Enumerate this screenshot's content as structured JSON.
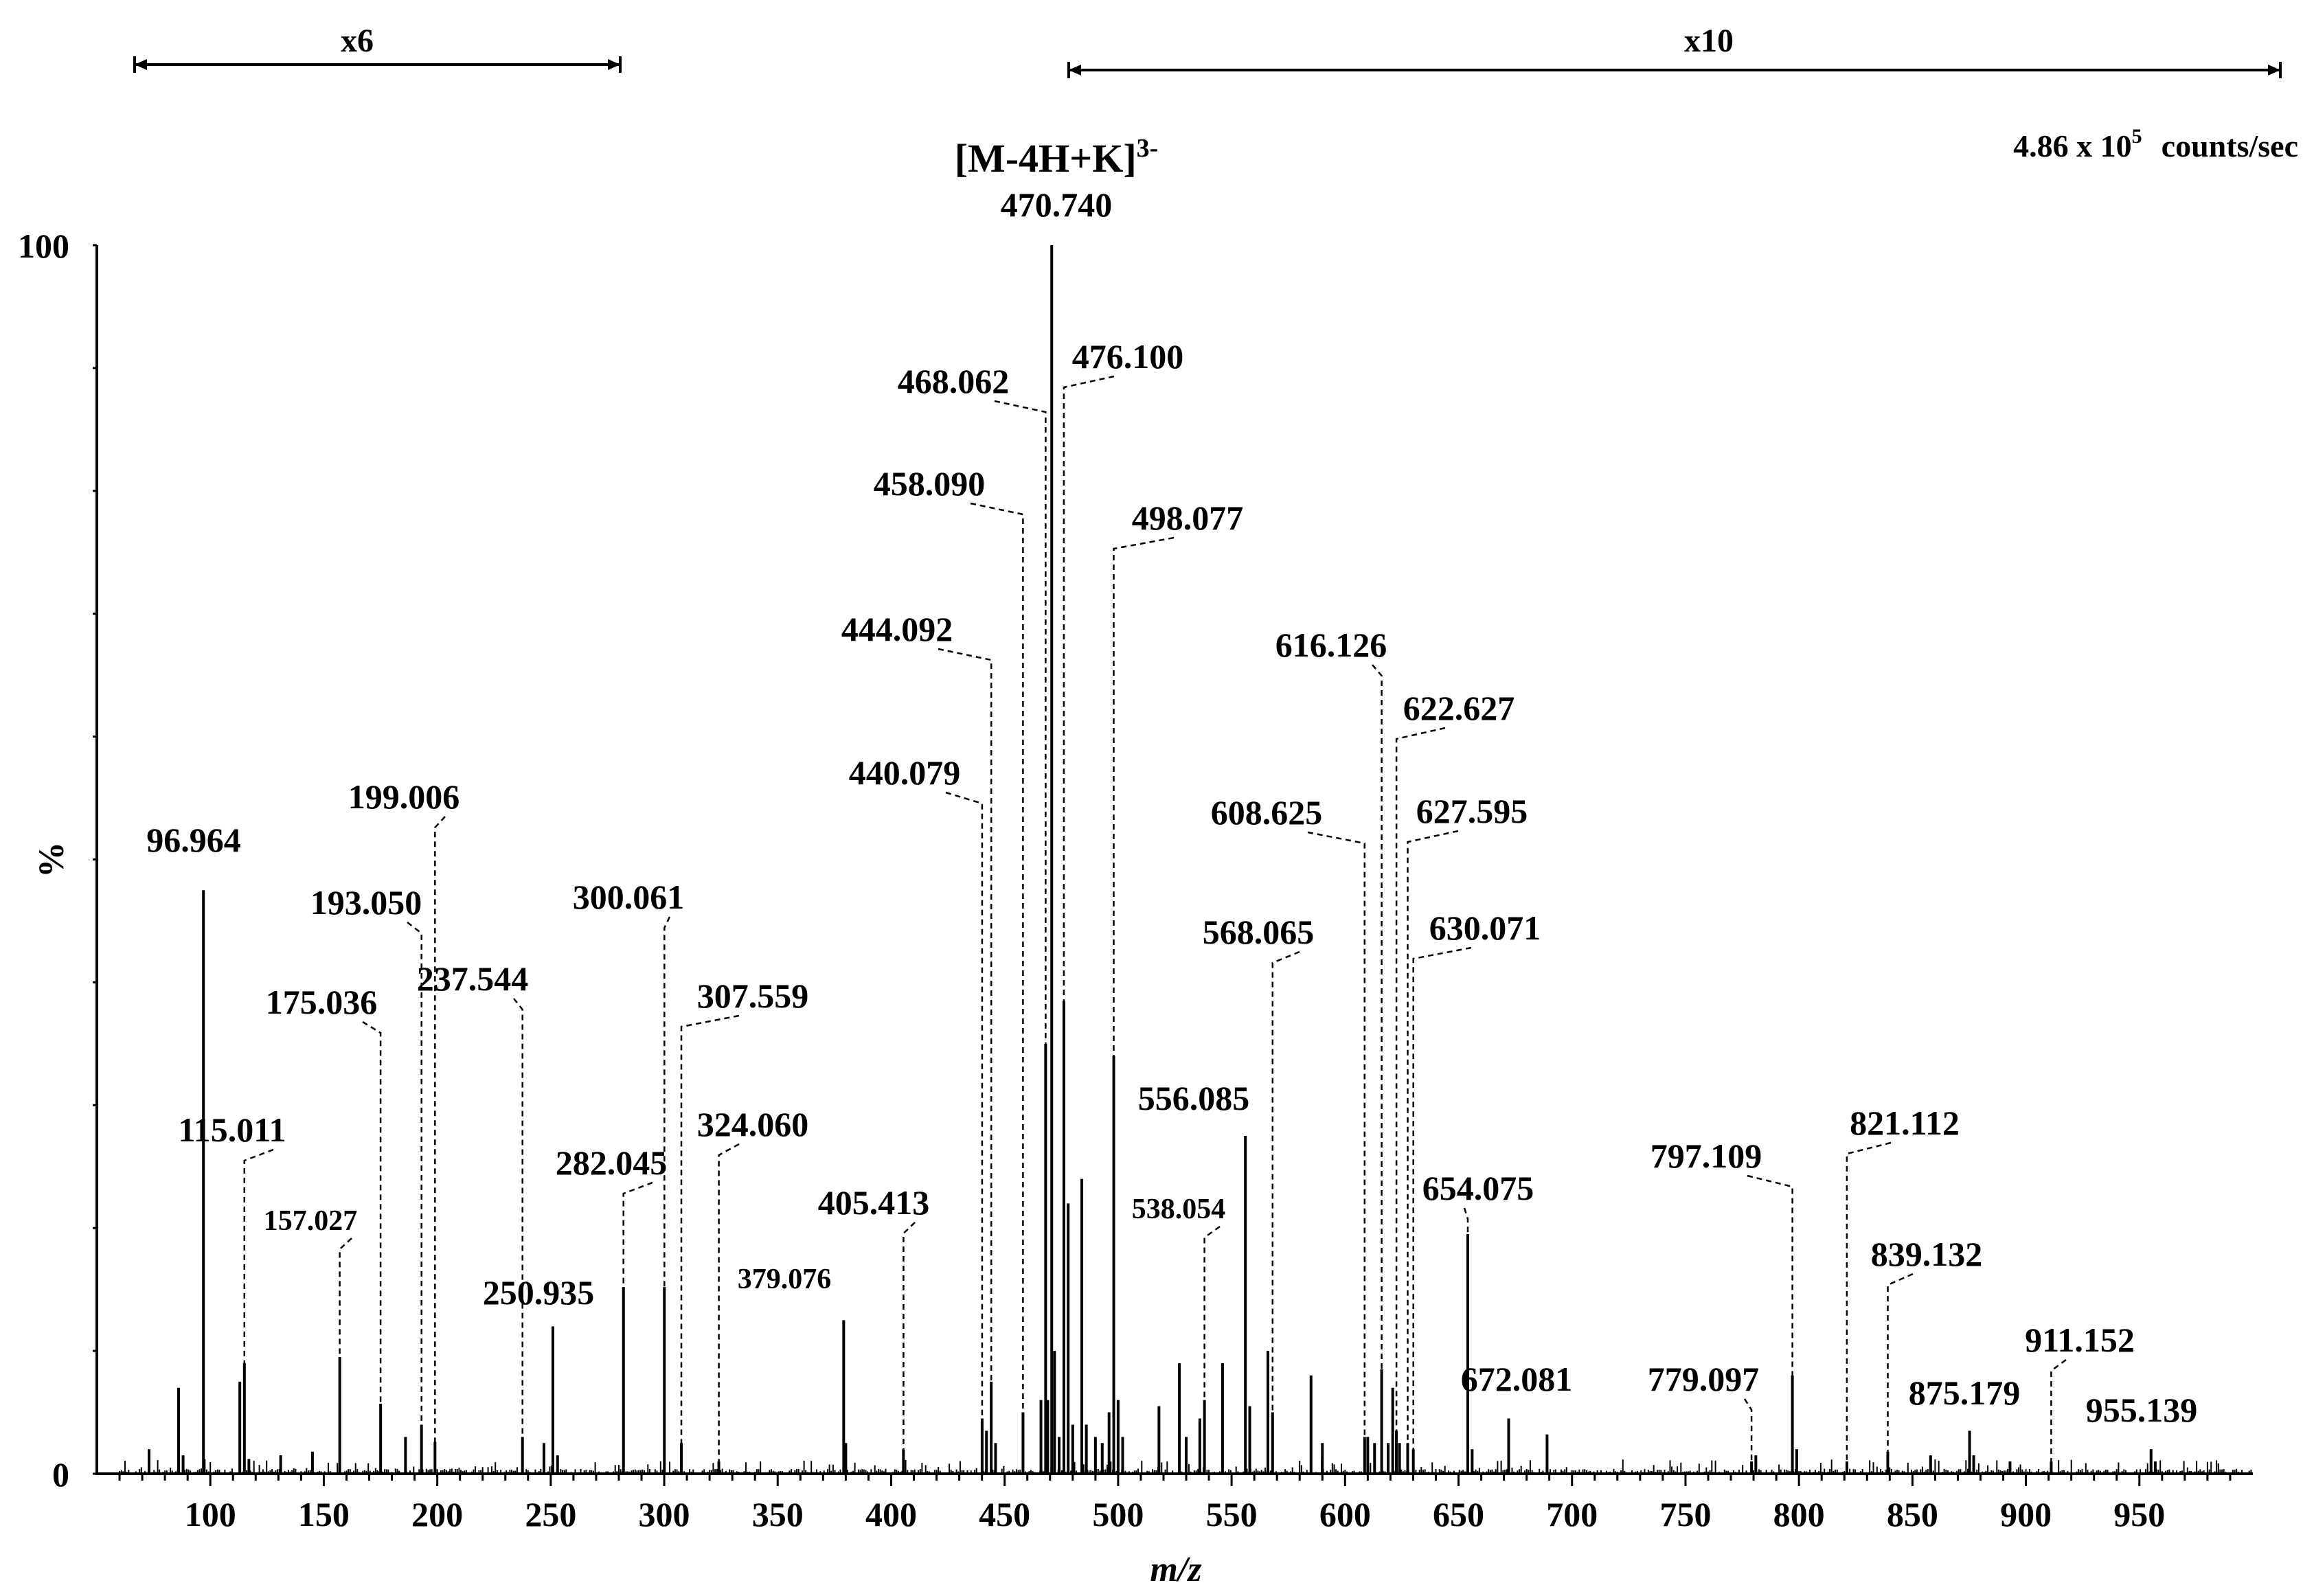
{
  "chart_data": {
    "type": "mass-spectrum",
    "intensity_label": "4.86 x 10",
    "intensity_exponent": "5",
    "intensity_units": "counts/sec",
    "base_peak_label": "[M-4H+K]",
    "base_peak_charge": "3-",
    "base_peak_color": "#e8141c",
    "xlabel": "m/z",
    "ylabel": "%",
    "xlim": [
      50,
      1000
    ],
    "ylim": [
      0,
      100
    ],
    "x_ticks": [
      100,
      150,
      200,
      250,
      300,
      350,
      400,
      450,
      500,
      550,
      600,
      650,
      700,
      750,
      800,
      850,
      900,
      950
    ],
    "y_tick_labels": [
      {
        "value": 0,
        "label": "0"
      },
      {
        "value": 100,
        "label": "100"
      }
    ],
    "magnification_ranges": [
      {
        "label": "x6",
        "from": 66,
        "to": 280
      },
      {
        "label": "x10",
        "from": 479,
        "to": 1015
      }
    ],
    "peaks": [
      {
        "mz": 96.964,
        "intensity": 47.5,
        "label": "96.964"
      },
      {
        "mz": 115.011,
        "intensity": 9,
        "label": "115.011"
      },
      {
        "mz": 157.027,
        "intensity": 9.5,
        "label": "157.027"
      },
      {
        "mz": 175.036,
        "intensity": 5.7,
        "label": "175.036"
      },
      {
        "mz": 193.05,
        "intensity": 4,
        "label": "193.050"
      },
      {
        "mz": 199.006,
        "intensity": 2.6,
        "label": "199.006"
      },
      {
        "mz": 237.544,
        "intensity": 3,
        "label": "237.544"
      },
      {
        "mz": 250.935,
        "intensity": 12,
        "label": "250.935"
      },
      {
        "mz": 282.045,
        "intensity": 15.2,
        "label": "282.045"
      },
      {
        "mz": 300.061,
        "intensity": 15.2,
        "label": "300.061"
      },
      {
        "mz": 307.559,
        "intensity": 2.5,
        "label": "307.559"
      },
      {
        "mz": 324.06,
        "intensity": 1,
        "label": "324.060"
      },
      {
        "mz": 379.076,
        "intensity": 12.5,
        "label": "379.076"
      },
      {
        "mz": 405.413,
        "intensity": 2,
        "label": "405.413"
      },
      {
        "mz": 440.079,
        "intensity": 4.5,
        "label": "440.079"
      },
      {
        "mz": 444.092,
        "intensity": 7.5,
        "label": "444.092"
      },
      {
        "mz": 458.09,
        "intensity": 5,
        "label": "458.090"
      },
      {
        "mz": 468.062,
        "intensity": 35,
        "label": "468.062"
      },
      {
        "mz": 470.74,
        "intensity": 100,
        "label": "470.740"
      },
      {
        "mz": 476.1,
        "intensity": 38.5,
        "label": "476.100"
      },
      {
        "mz": 498.077,
        "intensity": 34,
        "label": "498.077"
      },
      {
        "mz": 538.054,
        "intensity": 6,
        "label": "538.054"
      },
      {
        "mz": 556.085,
        "intensity": 27.5,
        "label": "556.085"
      },
      {
        "mz": 568.065,
        "intensity": 5,
        "label": "568.065"
      },
      {
        "mz": 608.625,
        "intensity": 3,
        "label": "608.625"
      },
      {
        "mz": 616.126,
        "intensity": 8.5,
        "label": "616.126"
      },
      {
        "mz": 622.627,
        "intensity": 3.5,
        "label": "622.627"
      },
      {
        "mz": 627.595,
        "intensity": 2.5,
        "label": "627.595"
      },
      {
        "mz": 630.071,
        "intensity": 2,
        "label": "630.071"
      },
      {
        "mz": 654.075,
        "intensity": 19.5,
        "label": "654.075"
      },
      {
        "mz": 672.081,
        "intensity": 4.5,
        "label": "672.081"
      },
      {
        "mz": 779.097,
        "intensity": 1,
        "label": "779.097"
      },
      {
        "mz": 797.109,
        "intensity": 8,
        "label": "797.109"
      },
      {
        "mz": 821.112,
        "intensity": 1,
        "label": "821.112"
      },
      {
        "mz": 839.132,
        "intensity": 1.8,
        "label": "839.132"
      },
      {
        "mz": 875.179,
        "intensity": 3.5,
        "label": "875.179"
      },
      {
        "mz": 911.152,
        "intensity": 1,
        "label": "911.152"
      },
      {
        "mz": 955.139,
        "intensity": 2,
        "label": "955.139"
      }
    ],
    "minor_peaks": [
      {
        "mz": 73,
        "intensity": 2
      },
      {
        "mz": 86,
        "intensity": 7
      },
      {
        "mz": 88,
        "intensity": 1.5
      },
      {
        "mz": 113,
        "intensity": 7.5
      },
      {
        "mz": 117,
        "intensity": 1.2
      },
      {
        "mz": 131,
        "intensity": 1.5
      },
      {
        "mz": 145,
        "intensity": 1.8
      },
      {
        "mz": 186,
        "intensity": 3
      },
      {
        "mz": 247,
        "intensity": 2.5
      },
      {
        "mz": 253,
        "intensity": 1.5
      },
      {
        "mz": 380,
        "intensity": 2.5
      },
      {
        "mz": 442,
        "intensity": 3.5
      },
      {
        "mz": 446,
        "intensity": 2.5
      },
      {
        "mz": 466,
        "intensity": 6
      },
      {
        "mz": 469,
        "intensity": 6
      },
      {
        "mz": 472,
        "intensity": 10
      },
      {
        "mz": 474,
        "intensity": 3
      },
      {
        "mz": 478,
        "intensity": 22
      },
      {
        "mz": 480,
        "intensity": 4
      },
      {
        "mz": 484,
        "intensity": 24
      },
      {
        "mz": 486,
        "intensity": 4
      },
      {
        "mz": 490,
        "intensity": 3
      },
      {
        "mz": 493,
        "intensity": 2.5
      },
      {
        "mz": 496,
        "intensity": 5
      },
      {
        "mz": 500,
        "intensity": 6
      },
      {
        "mz": 502,
        "intensity": 3
      },
      {
        "mz": 518,
        "intensity": 5.5
      },
      {
        "mz": 527,
        "intensity": 9
      },
      {
        "mz": 530,
        "intensity": 3
      },
      {
        "mz": 536,
        "intensity": 4.5
      },
      {
        "mz": 546,
        "intensity": 9
      },
      {
        "mz": 558,
        "intensity": 5.5
      },
      {
        "mz": 566,
        "intensity": 10
      },
      {
        "mz": 585,
        "intensity": 8
      },
      {
        "mz": 590,
        "intensity": 2.5
      },
      {
        "mz": 610,
        "intensity": 3
      },
      {
        "mz": 613,
        "intensity": 2.5
      },
      {
        "mz": 619,
        "intensity": 2.5
      },
      {
        "mz": 621,
        "intensity": 7
      },
      {
        "mz": 624,
        "intensity": 2.5
      },
      {
        "mz": 656,
        "intensity": 2
      },
      {
        "mz": 689,
        "intensity": 3.2
      },
      {
        "mz": 781,
        "intensity": 1.5
      },
      {
        "mz": 799,
        "intensity": 2
      },
      {
        "mz": 858,
        "intensity": 1.5
      },
      {
        "mz": 877,
        "intensity": 1.5
      },
      {
        "mz": 893,
        "intensity": 1
      },
      {
        "mz": 957,
        "intensity": 1
      }
    ]
  }
}
